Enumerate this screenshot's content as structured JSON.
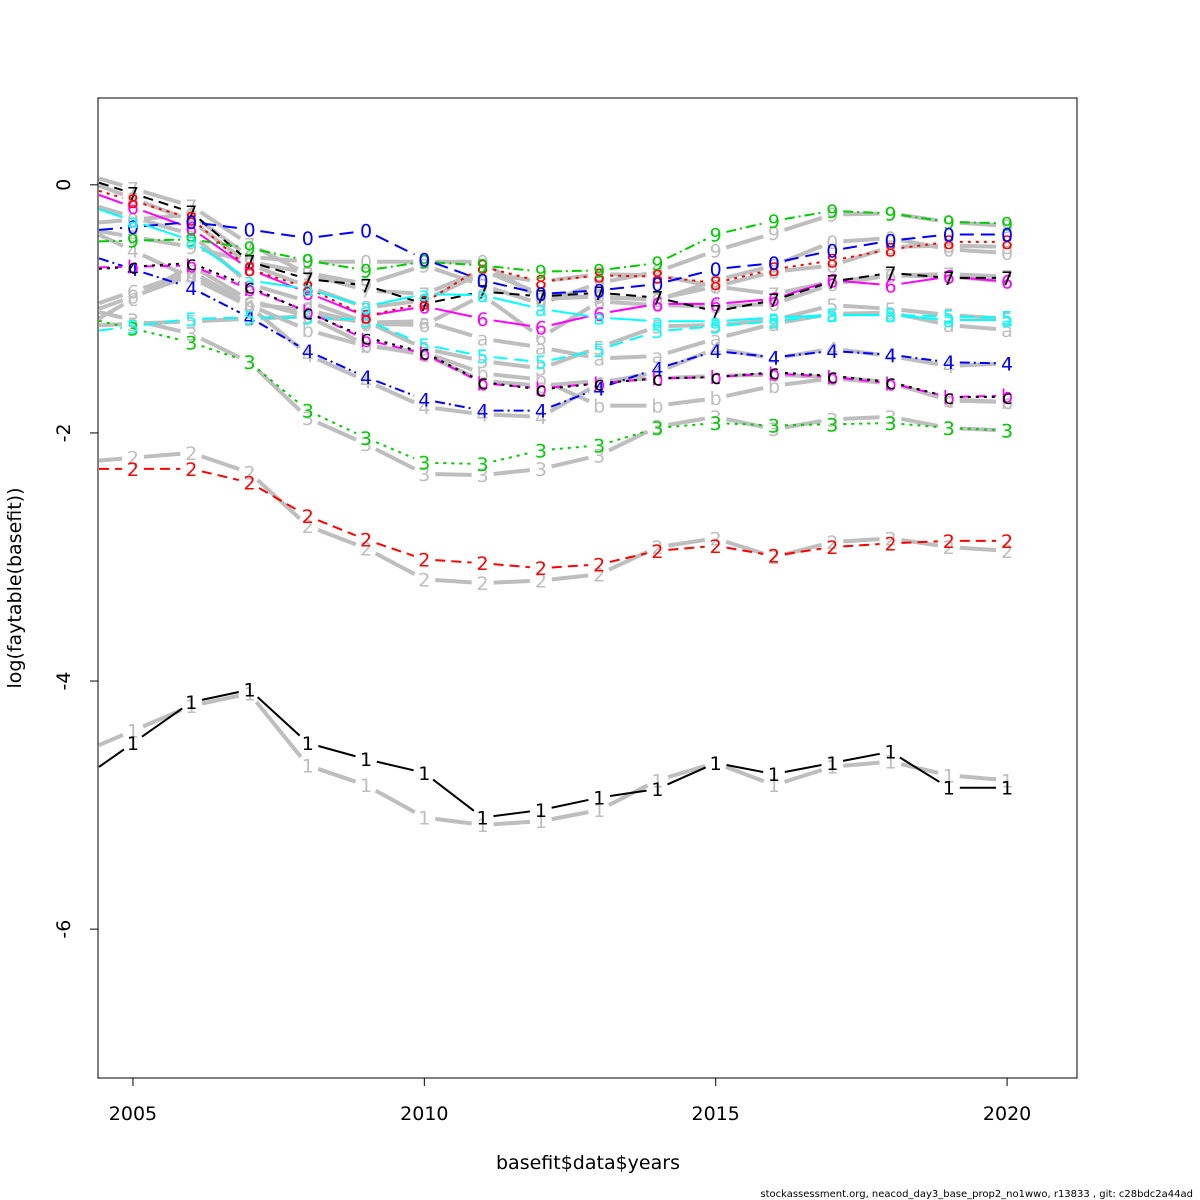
{
  "chart_data": {
    "type": "line",
    "xlabel": "basefit$data$years",
    "ylabel": "log(faytable(basefit))",
    "xlim": [
      2004.4,
      2021.2
    ],
    "ylim": [
      -7.2,
      0.7
    ],
    "x_ticks": [
      2005,
      2010,
      2015,
      2020
    ],
    "y_ticks": [
      0,
      -2,
      -4,
      -6
    ],
    "years": [
      2005,
      2006,
      2007,
      2008,
      2009,
      2010,
      2011,
      2012,
      2013,
      2014,
      2015,
      2016,
      2017,
      2018,
      2019,
      2020
    ],
    "series": [
      {
        "label": "1",
        "color": "#000000",
        "dash": "",
        "values": [
          -4.5,
          -4.17,
          -4.07,
          -4.5,
          -4.63,
          -4.74,
          -5.1,
          -5.04,
          -4.94,
          -4.87,
          -4.66,
          -4.75,
          -4.66,
          -4.57,
          -4.86,
          -4.86
        ]
      },
      {
        "label": "2",
        "color": "#ff0000",
        "dash": "10,6",
        "values": [
          -2.29,
          -2.29,
          -2.4,
          -2.67,
          -2.86,
          -3.02,
          -3.05,
          -3.09,
          -3.06,
          -2.95,
          -2.91,
          -2.99,
          -2.92,
          -2.89,
          -2.87,
          -2.87
        ]
      },
      {
        "label": "3",
        "color": "#00cd00",
        "dash": "3,5",
        "values": [
          -1.16,
          -1.27,
          -1.43,
          -1.82,
          -2.04,
          -2.24,
          -2.25,
          -2.14,
          -2.1,
          -1.96,
          -1.92,
          -1.94,
          -1.93,
          -1.92,
          -1.96,
          -1.98
        ]
      },
      {
        "label": "4",
        "color": "#0000ff",
        "dash": "10,4,2,4",
        "values": [
          -0.68,
          -0.83,
          -1.07,
          -1.34,
          -1.55,
          -1.73,
          -1.82,
          -1.82,
          -1.64,
          -1.48,
          -1.34,
          -1.39,
          -1.34,
          -1.37,
          -1.43,
          -1.44
        ]
      },
      {
        "label": "5",
        "color": "#00ffff",
        "dash": "14,7",
        "values": [
          -1.14,
          -1.08,
          -1.07,
          -1.07,
          -1.09,
          -1.29,
          -1.38,
          -1.43,
          -1.33,
          -1.18,
          -1.14,
          -1.1,
          -1.05,
          -1.05,
          -1.06,
          -1.07
        ]
      },
      {
        "label": "6",
        "color": "#ff00ff",
        "dash": "",
        "values": [
          -0.18,
          -0.35,
          -0.68,
          -0.87,
          -1.06,
          -0.98,
          -1.08,
          -1.15,
          -1.04,
          -0.96,
          -0.96,
          -0.92,
          -0.77,
          -0.81,
          -0.74,
          -0.78
        ]
      },
      {
        "label": "7",
        "color": "#000000",
        "dash": "10,6",
        "values": [
          -0.07,
          -0.22,
          -0.62,
          -0.76,
          -0.81,
          -0.96,
          -0.86,
          -0.9,
          -0.87,
          -0.91,
          -1.02,
          -0.93,
          -0.78,
          -0.71,
          -0.75,
          -0.75
        ]
      },
      {
        "label": "8",
        "color": "#ff0000",
        "dash": "3,5",
        "values": [
          -0.13,
          -0.27,
          -0.68,
          -0.83,
          -1.06,
          -0.95,
          -0.66,
          -0.78,
          -0.73,
          -0.74,
          -0.79,
          -0.68,
          -0.61,
          -0.52,
          -0.46,
          -0.46
        ]
      },
      {
        "label": "9",
        "color": "#00cd00",
        "dash": "10,4,2,4",
        "values": [
          -0.45,
          -0.44,
          -0.51,
          -0.61,
          -0.69,
          -0.62,
          -0.65,
          -0.7,
          -0.69,
          -0.63,
          -0.4,
          -0.29,
          -0.21,
          -0.23,
          -0.3,
          -0.31
        ]
      },
      {
        "label": "0",
        "color": "#0000ff",
        "dash": "14,7",
        "values": [
          -0.34,
          -0.3,
          -0.36,
          -0.43,
          -0.37,
          -0.6,
          -0.77,
          -0.88,
          -0.85,
          -0.8,
          -0.68,
          -0.63,
          -0.53,
          -0.45,
          -0.4,
          -0.4
        ]
      },
      {
        "label": "a",
        "color": "#00ffff",
        "dash": "",
        "values": [
          -0.29,
          -0.45,
          -0.77,
          -0.84,
          -0.98,
          -0.88,
          -0.89,
          -1.0,
          -1.07,
          -1.1,
          -1.1,
          -1.07,
          -1.05,
          -1.05,
          -1.09,
          -1.09
        ]
      },
      {
        "label": "b",
        "color": "#ff00ff",
        "dash": "10,6",
        "values": [
          -0.66,
          -0.65,
          -0.84,
          -1.02,
          -1.25,
          -1.36,
          -1.6,
          -1.64,
          -1.6,
          -1.56,
          -1.55,
          -1.52,
          -1.55,
          -1.6,
          -1.71,
          -1.7
        ]
      },
      {
        "label": "c",
        "color": "#000000",
        "dash": "3,5",
        "values": [
          -0.66,
          -0.63,
          -0.82,
          -1.03,
          -1.23,
          -1.35,
          -1.59,
          -1.65,
          -1.6,
          -1.56,
          -1.55,
          -1.51,
          -1.54,
          -1.59,
          -1.71,
          -1.71
        ]
      }
    ],
    "grey_series": [
      {
        "label": "1",
        "values": [
          -4.4,
          -4.2,
          -4.1,
          -4.68,
          -4.84,
          -5.1,
          -5.16,
          -5.13,
          -5.04,
          -4.8,
          -4.66,
          -4.84,
          -4.69,
          -4.65,
          -4.76,
          -4.8
        ]
      },
      {
        "label": "2",
        "values": [
          -2.2,
          -2.16,
          -2.32,
          -2.75,
          -2.93,
          -3.18,
          -3.21,
          -3.19,
          -3.14,
          -2.92,
          -2.85,
          -3.0,
          -2.88,
          -2.85,
          -2.92,
          -2.95
        ]
      },
      {
        "label": "3",
        "values": [
          -1.09,
          -1.2,
          -1.43,
          -1.88,
          -2.09,
          -2.33,
          -2.34,
          -2.29,
          -2.18,
          -1.95,
          -1.87,
          -1.97,
          -1.89,
          -1.87,
          -1.96,
          -1.98
        ]
      },
      {
        "label": "4",
        "values": [
          -0.53,
          -0.75,
          -0.98,
          -1.37,
          -1.58,
          -1.79,
          -1.85,
          -1.87,
          -1.6,
          -1.51,
          -1.32,
          -1.4,
          -1.32,
          -1.38,
          -1.46,
          -1.44
        ]
      },
      {
        "label": "5",
        "values": [
          -1.12,
          -1.1,
          -1.08,
          -1.06,
          -1.1,
          -1.32,
          -1.42,
          -1.48,
          -1.31,
          -1.14,
          -1.13,
          -1.09,
          -0.97,
          -1.0,
          -1.05,
          -1.08
        ]
      },
      {
        "label": "6",
        "values": [
          -0.86,
          -0.7,
          -0.96,
          -1.01,
          -1.12,
          -1.13,
          -0.89,
          -1.23,
          -0.94,
          -0.97,
          -0.98,
          -0.96,
          -0.8,
          -0.73,
          -0.74,
          -0.78
        ]
      },
      {
        "label": "7",
        "values": [
          -0.03,
          -0.17,
          -0.48,
          -0.72,
          -0.85,
          -0.88,
          -0.69,
          -0.88,
          -0.91,
          -0.92,
          -0.82,
          -0.88,
          -0.78,
          -0.73,
          -0.72,
          -0.74
        ]
      },
      {
        "label": "8",
        "values": [
          -0.11,
          -0.29,
          -0.64,
          -0.82,
          -0.99,
          -0.93,
          -0.71,
          -0.78,
          -0.72,
          -0.73,
          -0.82,
          -0.7,
          -0.65,
          -0.5,
          -0.49,
          -0.5
        ]
      },
      {
        "label": "9",
        "values": [
          -0.42,
          -0.5,
          -0.62,
          -0.71,
          -0.8,
          -0.65,
          -0.81,
          -0.96,
          -0.79,
          -0.7,
          -0.53,
          -0.39,
          -0.24,
          -0.23,
          -0.3,
          -0.33
        ]
      },
      {
        "label": "0",
        "values": [
          -0.28,
          -0.24,
          -0.58,
          -0.62,
          -0.62,
          -0.62,
          -0.62,
          -0.92,
          -0.9,
          -0.93,
          -0.77,
          -0.65,
          -0.46,
          -0.43,
          -0.52,
          -0.55
        ]
      },
      {
        "label": "a",
        "values": [
          -0.26,
          -0.4,
          -0.8,
          -0.94,
          -1.11,
          -1.1,
          -1.24,
          -1.31,
          -1.4,
          -1.38,
          -1.24,
          -1.12,
          -1.04,
          -1.03,
          -1.13,
          -1.17
        ]
      },
      {
        "label": "b",
        "values": [
          -0.9,
          -0.73,
          -0.97,
          -1.17,
          -1.3,
          -1.35,
          -1.52,
          -1.57,
          -1.78,
          -1.78,
          -1.72,
          -1.62,
          -1.56,
          -1.6,
          -1.73,
          -1.75
        ]
      },
      {
        "label": "c",
        "values": [
          -0.92,
          -0.65,
          -0.93,
          -1.06,
          -1.29,
          -1.37,
          -1.58,
          -1.62,
          -1.58,
          -1.56,
          -1.54,
          -1.53,
          -1.55,
          -1.59,
          -1.74,
          -1.75
        ]
      }
    ]
  },
  "footer": "stockassessment.org, neacod_day3_base_prop2_no1wwo, r13833 , git: c28bdc2a44ad"
}
